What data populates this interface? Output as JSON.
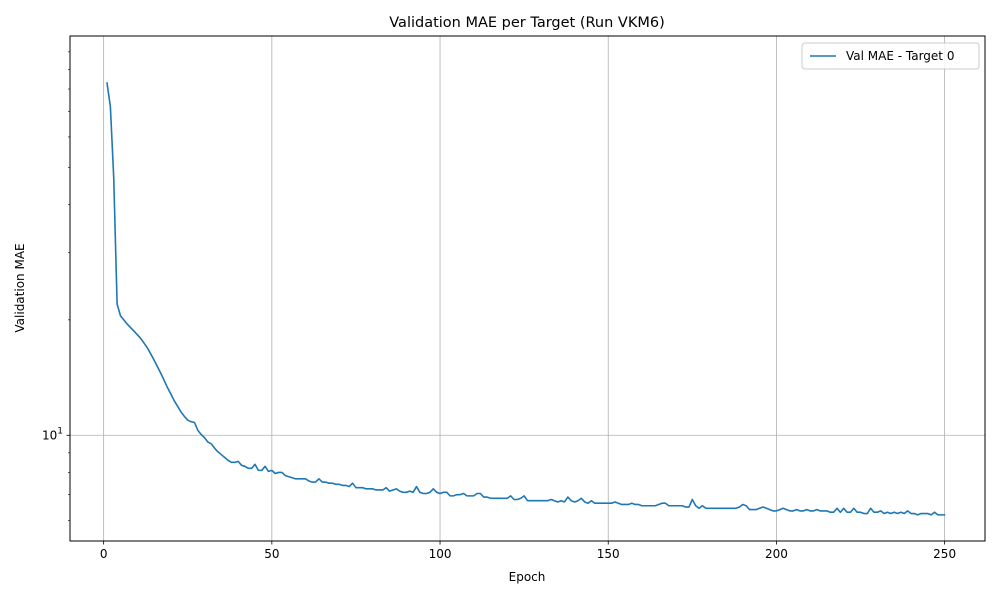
{
  "chart_data": {
    "type": "line",
    "title": "Validation MAE per Target (Run VKM6)",
    "xlabel": "Epoch",
    "ylabel": "Validation MAE",
    "xlim": [
      -10,
      262
    ],
    "ylim": [
      5.3,
      110
    ],
    "yscale": "log",
    "grid": true,
    "legend_position": "top-right",
    "x_ticks": [
      0,
      50,
      100,
      150,
      200,
      250
    ],
    "y_major_ticks": [
      10
    ],
    "y_major_tick_labels": [
      "10"
    ],
    "y_minor_ticks": [
      6,
      7,
      8,
      9,
      20,
      30,
      40,
      50,
      60,
      70,
      80,
      90,
      100
    ],
    "line_color": "#1f77b4",
    "series": [
      {
        "name": "Val MAE - Target 0",
        "x_start": 1,
        "x_step": 1,
        "values": [
          83,
          72,
          47,
          22,
          20.5,
          20,
          19.5,
          19.1,
          18.7,
          18.3,
          17.9,
          17.4,
          16.9,
          16.3,
          15.7,
          15.1,
          14.5,
          13.9,
          13.3,
          12.8,
          12.3,
          11.9,
          11.5,
          11.2,
          10.95,
          10.85,
          10.8,
          10.3,
          10.05,
          9.85,
          9.6,
          9.5,
          9.25,
          9.05,
          8.9,
          8.75,
          8.6,
          8.5,
          8.5,
          8.55,
          8.35,
          8.3,
          8.2,
          8.2,
          8.4,
          8.1,
          8.1,
          8.3,
          8.05,
          8.1,
          7.95,
          8.0,
          8.0,
          7.85,
          7.8,
          7.75,
          7.7,
          7.7,
          7.7,
          7.7,
          7.6,
          7.55,
          7.55,
          7.7,
          7.55,
          7.55,
          7.5,
          7.5,
          7.45,
          7.45,
          7.4,
          7.4,
          7.35,
          7.5,
          7.3,
          7.3,
          7.3,
          7.25,
          7.25,
          7.25,
          7.2,
          7.2,
          7.2,
          7.3,
          7.15,
          7.2,
          7.25,
          7.15,
          7.1,
          7.1,
          7.15,
          7.1,
          7.35,
          7.1,
          7.05,
          7.05,
          7.1,
          7.25,
          7.1,
          7.05,
          7.1,
          7.1,
          6.95,
          6.95,
          7.0,
          7.0,
          7.05,
          6.95,
          6.95,
          6.95,
          7.05,
          7.05,
          6.9,
          6.9,
          6.85,
          6.85,
          6.85,
          6.85,
          6.85,
          6.85,
          6.95,
          6.8,
          6.8,
          6.85,
          6.95,
          6.75,
          6.75,
          6.75,
          6.75,
          6.75,
          6.75,
          6.75,
          6.8,
          6.75,
          6.7,
          6.75,
          6.7,
          6.9,
          6.75,
          6.7,
          6.75,
          6.85,
          6.7,
          6.65,
          6.75,
          6.65,
          6.65,
          6.65,
          6.65,
          6.65,
          6.65,
          6.7,
          6.65,
          6.6,
          6.6,
          6.6,
          6.65,
          6.6,
          6.6,
          6.55,
          6.55,
          6.55,
          6.55,
          6.55,
          6.6,
          6.65,
          6.65,
          6.55,
          6.55,
          6.55,
          6.55,
          6.55,
          6.5,
          6.5,
          6.8,
          6.55,
          6.45,
          6.55,
          6.45,
          6.45,
          6.45,
          6.45,
          6.45,
          6.45,
          6.45,
          6.45,
          6.45,
          6.45,
          6.5,
          6.6,
          6.55,
          6.4,
          6.4,
          6.4,
          6.45,
          6.5,
          6.45,
          6.4,
          6.35,
          6.35,
          6.4,
          6.45,
          6.4,
          6.35,
          6.35,
          6.4,
          6.35,
          6.35,
          6.4,
          6.35,
          6.35,
          6.4,
          6.35,
          6.35,
          6.35,
          6.3,
          6.3,
          6.45,
          6.3,
          6.45,
          6.3,
          6.3,
          6.45,
          6.3,
          6.3,
          6.25,
          6.25,
          6.45,
          6.3,
          6.3,
          6.35,
          6.25,
          6.3,
          6.25,
          6.3,
          6.25,
          6.3,
          6.25,
          6.35,
          6.25,
          6.25,
          6.2,
          6.25,
          6.25,
          6.25,
          6.2,
          6.3,
          6.2,
          6.2,
          6.2
        ]
      }
    ]
  }
}
